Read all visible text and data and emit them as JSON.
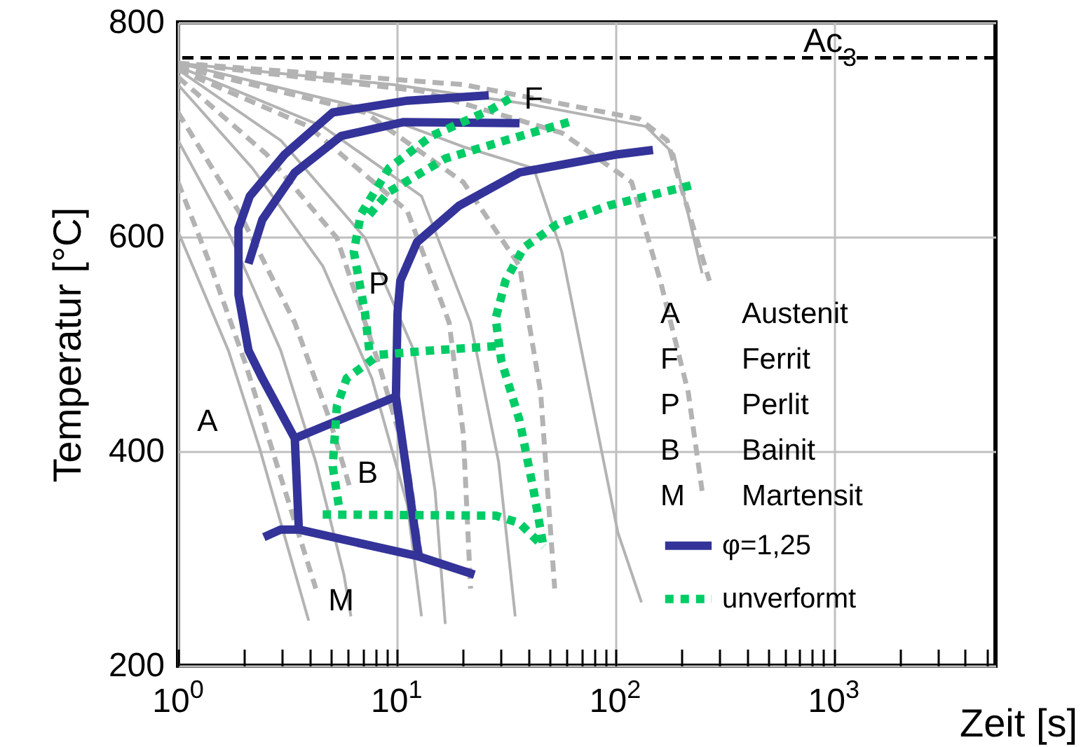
{
  "chart_data": {
    "type": "line",
    "xlabel": "Zeit [s]",
    "ylabel": "Temperatur [°C]",
    "log": "x",
    "xlim": [
      1,
      5500
    ],
    "ylim": [
      200,
      800
    ],
    "xticks": [
      {
        "value": 1,
        "label": "10$^{0}$"
      },
      {
        "value": 2,
        "label": null
      },
      {
        "value": 3,
        "label": null
      },
      {
        "value": 4,
        "label": null
      },
      {
        "value": 5,
        "label": null
      },
      {
        "value": 6,
        "label": null
      },
      {
        "value": 7,
        "label": null
      },
      {
        "value": 8,
        "label": null
      },
      {
        "value": 9,
        "label": null
      },
      {
        "value": 10,
        "label": "10$^{1}$"
      },
      {
        "value": 20,
        "label": null
      },
      {
        "value": 30,
        "label": null
      },
      {
        "value": 40,
        "label": null
      },
      {
        "value": 50,
        "label": null
      },
      {
        "value": 60,
        "label": null
      },
      {
        "value": 70,
        "label": null
      },
      {
        "value": 80,
        "label": null
      },
      {
        "value": 90,
        "label": null
      },
      {
        "value": 100,
        "label": "10$^{2}$"
      },
      {
        "value": 200,
        "label": null
      },
      {
        "value": 300,
        "label": null
      },
      {
        "value": 400,
        "label": null
      },
      {
        "value": 500,
        "label": null
      },
      {
        "value": 600,
        "label": null
      },
      {
        "value": 700,
        "label": null
      },
      {
        "value": 800,
        "label": null
      },
      {
        "value": 900,
        "label": null
      },
      {
        "value": 1000,
        "label": "10$^{3}$"
      },
      {
        "value": 2000,
        "label": null
      },
      {
        "value": 3000,
        "label": null
      },
      {
        "value": 4000,
        "label": null
      },
      {
        "value": 5000,
        "label": null
      }
    ],
    "yticks": [
      200,
      400,
      600,
      800
    ],
    "grid": true,
    "legend": "bottom right",
    "ref_lines": [
      {
        "axis": "y",
        "value": 767,
        "label": "Ac$_{3}$",
        "color": "#000000",
        "line_style": "dashed"
      }
    ],
    "annotations": [
      "A",
      {
        "text": "F",
        "x": 42.4,
        "y": 729
      },
      {
        "text": "P",
        "x": 8.31,
        "y": 556
      },
      "B",
      {
        "text": "M",
        "x": 5.57,
        "y": 261
      },
      "A Austenit",
      "F Ferrit",
      "P Perlit",
      "B Bainit",
      "M Martensit"
    ],
    "series": [
      {
        "color": "#b3b3b3",
        "line_style": "solid",
        "x": [
          1,
          1.7,
          2.36,
          3.17,
          3.96
        ],
        "values": [
          605,
          494,
          403,
          311,
          242
        ]
      },
      {
        "color": "#b3b3b3",
        "line_style": "solid",
        "x": [
          1,
          1.75,
          2.95,
          4.27,
          5.74,
          6.18
        ],
        "values": [
          690,
          599,
          494,
          390,
          285,
          246
        ]
      },
      {
        "color": "#b3b3b3",
        "line_style": "solid",
        "x": [
          1,
          2.19,
          4.59,
          7.71,
          11.2,
          13
        ],
        "values": [
          742,
          664,
          573,
          468,
          350,
          246
        ]
      },
      {
        "color": "#b3b3b3",
        "line_style": "solid",
        "x": [
          1,
          2.95,
          7.17,
          12,
          15,
          16.7
        ],
        "values": [
          756,
          690,
          599,
          494,
          363,
          239
        ]
      },
      {
        "color": "#b3b3b3",
        "line_style": "solid",
        "x": [
          1,
          4.59,
          13,
          21.8,
          29.3,
          34.9
        ],
        "values": [
          759,
          703,
          638,
          520,
          390,
          246
        ]
      },
      {
        "color": "#b3b3b3",
        "line_style": "solid",
        "x": [
          1,
          6.18,
          20.2,
          42.4,
          57,
          76.6,
          103,
          132
        ],
        "values": [
          762,
          723,
          684,
          664,
          586,
          455,
          324,
          259
        ]
      },
      {
        "color": "#b3b3b3",
        "line_style": "solid",
        "x": [
          1,
          9.64,
          42.4,
          138,
          186,
          250
        ],
        "values": [
          762,
          742,
          723,
          703,
          677,
          566
        ]
      },
      {
        "color": "#b3b3b3",
        "line_style": "dashed",
        "x": [
          1,
          1.41,
          2.04,
          2.95,
          4.27
        ],
        "values": [
          651,
          573,
          481,
          376,
          272
        ]
      },
      {
        "color": "#b3b3b3",
        "line_style": "dashed",
        "x": [
          1,
          1.89,
          3.42,
          4.95,
          6.18
        ],
        "values": [
          716,
          624,
          520,
          429,
          363
        ]
      },
      {
        "color": "#b3b3b3",
        "line_style": "dashed",
        "x": [
          1,
          2.54,
          5.33,
          8.31,
          11.2,
          13
        ],
        "values": [
          749,
          677,
          599,
          481,
          390,
          298
        ]
      },
      {
        "color": "#b3b3b3",
        "line_style": "dashed",
        "x": [
          1,
          3.96,
          11.2,
          17.4,
          20.2,
          21.8
        ],
        "values": [
          756,
          703,
          624,
          520,
          416,
          272
        ]
      },
      {
        "color": "#b3b3b3",
        "line_style": "dashed",
        "x": [
          1,
          7.17,
          20.2,
          36.5,
          45.6,
          52.9
        ],
        "values": [
          759,
          716,
          651,
          573,
          455,
          272
        ]
      },
      {
        "color": "#b3b3b3",
        "line_style": "dashed",
        "x": [
          1,
          13,
          57,
          119,
          161,
          216,
          250
        ],
        "values": [
          762,
          736,
          697,
          651,
          559,
          455,
          363
        ]
      },
      {
        "color": "#b3b3b3",
        "line_style": "dashed",
        "x": [
          1,
          20.2,
          129,
          173,
          270
        ],
        "values": [
          762,
          742,
          710,
          690,
          559
        ]
      },
      {
        "name": "φ=1,25",
        "color": "#333399",
        "line_style": "solid",
        "x": [
          26.4,
          11.2,
          5.1,
          3.08,
          2.13,
          1.89,
          1.89,
          2.1,
          2.43,
          3.42,
          3.57
        ],
        "values": [
          732,
          727,
          716,
          677,
          638,
          608,
          546,
          494,
          468,
          412,
          327
        ]
      },
      {
        "color": "#333399",
        "line_style": "solid",
        "x": [
          36.5,
          10.7,
          5.57,
          3.42,
          2.43,
          2.1
        ],
        "values": [
          706,
          707,
          694,
          660,
          616,
          575
        ]
      },
      {
        "color": "#333399",
        "line_style": "solid",
        "x": [
          149,
          103,
          36.5,
          19.3,
          12.4,
          10.4,
          10.1,
          9.93,
          11.2,
          12.6,
          22.7
        ],
        "values": [
          681,
          677,
          660,
          629,
          595,
          559,
          529,
          451,
          376,
          302,
          285
        ]
      },
      {
        "color": "#333399",
        "line_style": "solid",
        "x": [
          3.42,
          9.93
        ],
        "values": [
          412,
          451
        ]
      },
      {
        "color": "#333399",
        "line_style": "solid",
        "x": [
          2.47,
          2.95,
          3.57,
          12.6
        ],
        "values": [
          320,
          327,
          327,
          302
        ]
      },
      {
        "name": "unverformt",
        "color": "#00cc66",
        "line_style": "dotted",
        "x": [
          33,
          27.2,
          14.4,
          9.22,
          6.86,
          6.37,
          7.17,
          7.5
        ],
        "values": [
          729,
          719,
          694,
          664,
          621,
          586,
          529,
          494
        ]
      },
      {
        "color": "#00cc66",
        "line_style": "dotted",
        "x": [
          61.4,
          31.5,
          16.7,
          9.22,
          7.17
        ],
        "values": [
          707,
          690,
          673,
          642,
          616
        ]
      },
      {
        "color": "#00cc66",
        "line_style": "dotted",
        "x": [
          28.4,
          14.4,
          8.31,
          5.91,
          5.33,
          5.1,
          5.49
        ],
        "values": [
          498,
          494,
          490,
          468,
          442,
          386,
          344
        ]
      },
      {
        "color": "#00cc66",
        "line_style": "dotted",
        "x": [
          4.59,
          28.4,
          36.5,
          47
        ],
        "values": [
          341,
          340,
          333,
          311
        ]
      },
      {
        "color": "#00cc66",
        "line_style": "dotted",
        "x": [
          222,
          92.9,
          54.5,
          38.2,
          31.5,
          28.4,
          30.1,
          36.5,
          42.4,
          47
        ],
        "values": [
          648,
          629,
          612,
          590,
          559,
          524,
          485,
          429,
          363,
          311
        ]
      }
    ]
  }
}
